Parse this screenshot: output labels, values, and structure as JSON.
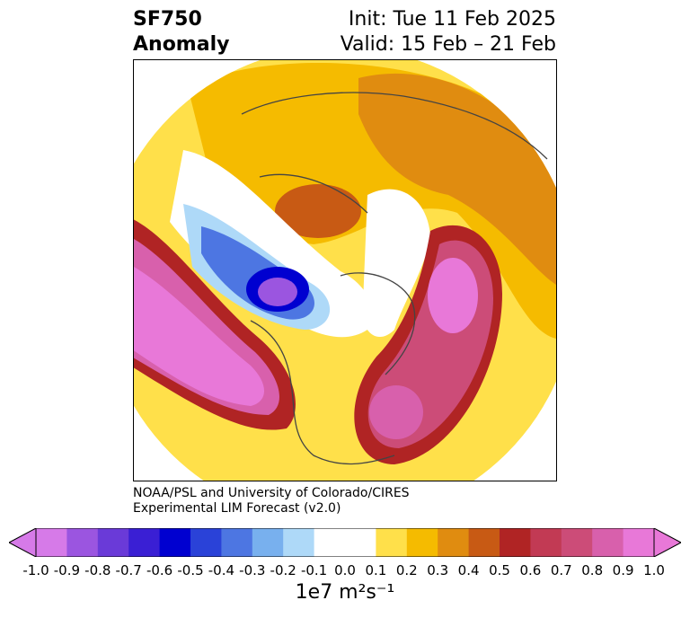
{
  "title": {
    "variable": "SF750",
    "field": "Anomaly",
    "init": "Init: Tue 11 Feb 2025",
    "valid": "Valid: 15 Feb – 21 Feb"
  },
  "credit": {
    "line1": "NOAA/PSL and University of Colorado/CIRES",
    "line2": "Experimental LIM Forecast (v2.0)"
  },
  "colorbar": {
    "units": "1e7 m²s⁻¹",
    "ticks": [
      "-1.0",
      "-0.9",
      "-0.8",
      "-0.7",
      "-0.6",
      "-0.5",
      "-0.4",
      "-0.3",
      "-0.2",
      "-0.1",
      "0.0",
      "0.1",
      "0.2",
      "0.3",
      "0.4",
      "0.5",
      "0.6",
      "0.7",
      "0.8",
      "0.9",
      "1.0"
    ],
    "colors": [
      "#d67ae8",
      "#9b55e0",
      "#6a3ad8",
      "#3a1fd4",
      "#0000d0",
      "#2a42d8",
      "#4d76e2",
      "#78b0ee",
      "#aed9f8",
      "#ffffff",
      "#ffffff",
      "#ffe04a",
      "#f5bb00",
      "#e08c10",
      "#c85a14",
      "#b02424",
      "#c23a54",
      "#cc4c78",
      "#d860ac",
      "#e878d8"
    ],
    "extend_low": "#d67ae8",
    "extend_high": "#e878d8"
  }
}
